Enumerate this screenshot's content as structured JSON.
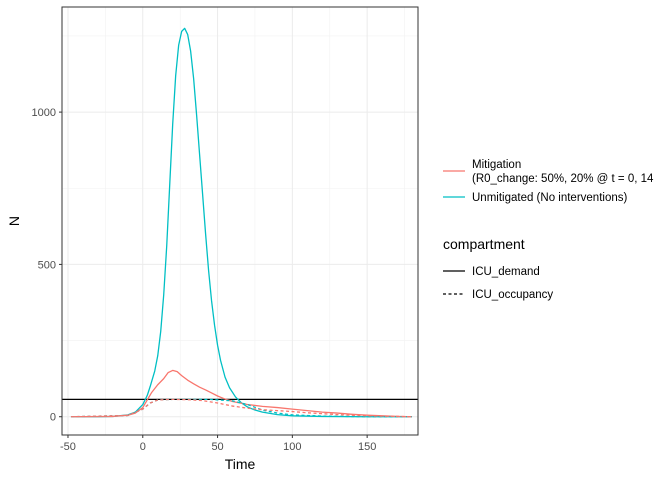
{
  "chart_data": {
    "type": "line",
    "xlabel": "Time",
    "ylabel": "N",
    "xlim": [
      -54,
      184
    ],
    "ylim": [
      -60,
      1345
    ],
    "xticks": [
      -50,
      0,
      50,
      100,
      150
    ],
    "yticks": [
      0,
      500,
      1000
    ],
    "grid": true,
    "legend_position": "right",
    "color_legend": {
      "entries": [
        {
          "label_line1": "Mitigation",
          "label_line2": "(R0_change: 50%, 20% @ t = 0, 14",
          "color": "#F8766D"
        },
        {
          "label_line1": "Unmitigated (No interventions)",
          "color": "#00BFC4"
        }
      ]
    },
    "linetype_legend": {
      "title": "compartment",
      "entries": [
        {
          "label": "ICU_demand",
          "linetype": "solid"
        },
        {
          "label": "ICU_occupancy",
          "linetype": "dashed"
        }
      ]
    },
    "reference_line": {
      "y": 57,
      "color": "#000000"
    },
    "series": [
      {
        "group": "Unmitigated (No interventions)",
        "compartment": "ICU_demand",
        "color": "#00BFC4",
        "linetype": "solid",
        "x": [
          -48,
          -30,
          -20,
          -10,
          -5,
          0,
          3,
          5,
          8,
          10,
          12,
          14,
          16,
          18,
          20,
          22,
          24,
          26,
          28,
          30,
          32,
          34,
          36,
          38,
          40,
          42,
          44,
          46,
          48,
          50,
          52,
          55,
          58,
          62,
          66,
          70,
          75,
          80,
          90,
          100,
          120,
          150,
          180
        ],
        "y": [
          0,
          0,
          1,
          6,
          15,
          40,
          70,
          100,
          150,
          200,
          280,
          400,
          560,
          760,
          960,
          1120,
          1220,
          1265,
          1275,
          1255,
          1200,
          1110,
          990,
          860,
          730,
          600,
          480,
          380,
          300,
          235,
          185,
          130,
          95,
          65,
          45,
          32,
          22,
          15,
          7,
          3,
          1,
          0,
          0
        ]
      },
      {
        "group": "Mitigation",
        "compartment": "ICU_demand",
        "color": "#F8766D",
        "linetype": "solid",
        "x": [
          -48,
          -20,
          -10,
          -5,
          0,
          3,
          6,
          10,
          14,
          17,
          20,
          23,
          26,
          30,
          34,
          38,
          42,
          46,
          50,
          55,
          60,
          70,
          80,
          90,
          100,
          110,
          120,
          130,
          140,
          150,
          160,
          170,
          180
        ],
        "y": [
          0,
          1,
          5,
          12,
          30,
          55,
          80,
          105,
          125,
          145,
          152,
          148,
          135,
          120,
          108,
          97,
          88,
          78,
          68,
          58,
          50,
          40,
          34,
          30,
          25,
          20,
          15,
          12,
          8,
          5,
          3,
          1,
          0
        ]
      },
      {
        "group": "Unmitigated (No interventions)",
        "compartment": "ICU_occupancy",
        "color": "#00BFC4",
        "linetype": "dashed",
        "x": [
          -48,
          -10,
          0,
          5,
          10,
          20,
          30,
          45,
          60,
          70,
          80,
          90,
          100,
          120,
          150,
          180
        ],
        "y": [
          0,
          4,
          25,
          45,
          55,
          57,
          57,
          57,
          52,
          40,
          22,
          12,
          6,
          2,
          0,
          0
        ]
      },
      {
        "group": "Mitigation",
        "compartment": "ICU_occupancy",
        "color": "#F8766D",
        "linetype": "dashed",
        "x": [
          -48,
          -10,
          0,
          5,
          10,
          20,
          30,
          40,
          50,
          60,
          70,
          80,
          90,
          100,
          110,
          120,
          130,
          140,
          150,
          160,
          170,
          180
        ],
        "y": [
          0,
          4,
          25,
          45,
          55,
          57,
          56,
          53,
          45,
          35,
          28,
          23,
          20,
          17,
          13,
          10,
          7,
          5,
          3,
          2,
          1,
          0
        ]
      }
    ]
  }
}
